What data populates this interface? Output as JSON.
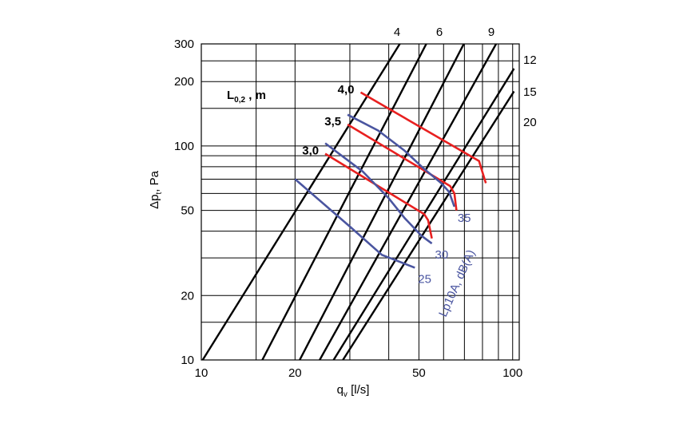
{
  "chart_data": {
    "type": "line",
    "x_scale": "log",
    "y_scale": "log",
    "xlim": [
      10,
      105
    ],
    "ylim": [
      10,
      300
    ],
    "grid": true,
    "x_ticks": [
      {
        "value": 10,
        "label": "10"
      },
      {
        "value": 20,
        "label": "20"
      },
      {
        "value": 50,
        "label": "50"
      },
      {
        "value": 100,
        "label": "100"
      }
    ],
    "y_ticks": [
      {
        "value": 10,
        "label": "10"
      },
      {
        "value": 20,
        "label": "20"
      },
      {
        "value": 50,
        "label": "50"
      },
      {
        "value": 100,
        "label": "100"
      },
      {
        "value": 200,
        "label": "200"
      },
      {
        "value": 300,
        "label": "300"
      }
    ],
    "x_grid": [
      10,
      15,
      20,
      30,
      40,
      50,
      60,
      70,
      80,
      90,
      100
    ],
    "y_grid": [
      10,
      15,
      20,
      30,
      40,
      50,
      60,
      70,
      80,
      90,
      100,
      150,
      200,
      250,
      300
    ],
    "xlabel_main": "q",
    "xlabel_sub": "v",
    "xlabel_unit": " [l/s]",
    "ylabel_main": "Δp",
    "ylabel_sub": "t",
    "ylabel_unit": ",  Pa",
    "size_lines": [
      {
        "label": "4",
        "points": [
          [
            10.1,
            10
          ],
          [
            43.4,
            300
          ]
        ]
      },
      {
        "label": "6",
        "points": [
          [
            15.7,
            10
          ],
          [
            52.8,
            300
          ]
        ]
      },
      {
        "label": "9",
        "points": [
          [
            20.7,
            10
          ],
          [
            69.7,
            300
          ]
        ]
      },
      {
        "label": "12",
        "points": [
          [
            24.0,
            10
          ],
          [
            88.5,
            300
          ]
        ]
      },
      {
        "label": "15",
        "points": [
          [
            26.6,
            10
          ],
          [
            101.0,
            230
          ]
        ]
      },
      {
        "label": "20",
        "points": [
          [
            28.5,
            10
          ],
          [
            101.0,
            180
          ]
        ]
      }
    ],
    "length_curves": [
      {
        "label": "4,0",
        "points": [
          [
            32.5,
            178
          ],
          [
            78,
            85
          ],
          [
            79,
            80
          ],
          [
            82,
            67
          ]
        ]
      },
      {
        "label": "3,5",
        "points": [
          [
            29.5,
            126
          ],
          [
            63,
            65
          ],
          [
            65,
            60
          ],
          [
            66,
            50
          ]
        ]
      },
      {
        "label": "3,0",
        "points": [
          [
            25,
            92
          ],
          [
            52,
            48
          ],
          [
            53.5,
            45
          ],
          [
            55,
            37
          ]
        ]
      }
    ],
    "length_title_main": "L",
    "length_title_sub": "0,2",
    "length_title_unit": " , m",
    "noise_curves": [
      {
        "label": "25",
        "points": [
          [
            20,
            70
          ],
          [
            30,
            42
          ],
          [
            38,
            31
          ],
          [
            48.5,
            27
          ]
        ]
      },
      {
        "label": "30",
        "points": [
          [
            25,
            103
          ],
          [
            33,
            76
          ],
          [
            40,
            57
          ],
          [
            45,
            46
          ],
          [
            51,
            38
          ],
          [
            55,
            35
          ]
        ]
      },
      {
        "label": "35",
        "points": [
          [
            29.5,
            140
          ],
          [
            37,
            118
          ],
          [
            45,
            95
          ],
          [
            52,
            78
          ],
          [
            59,
            67
          ],
          [
            62.5,
            61
          ],
          [
            65,
            52
          ]
        ]
      }
    ],
    "noise_axis_label": "Lp10A, dB(A)",
    "colors": {
      "size_lines": "#000000",
      "length_curves": "#e82020",
      "noise_curves": "#4a55a0",
      "grid": "#000000"
    }
  }
}
